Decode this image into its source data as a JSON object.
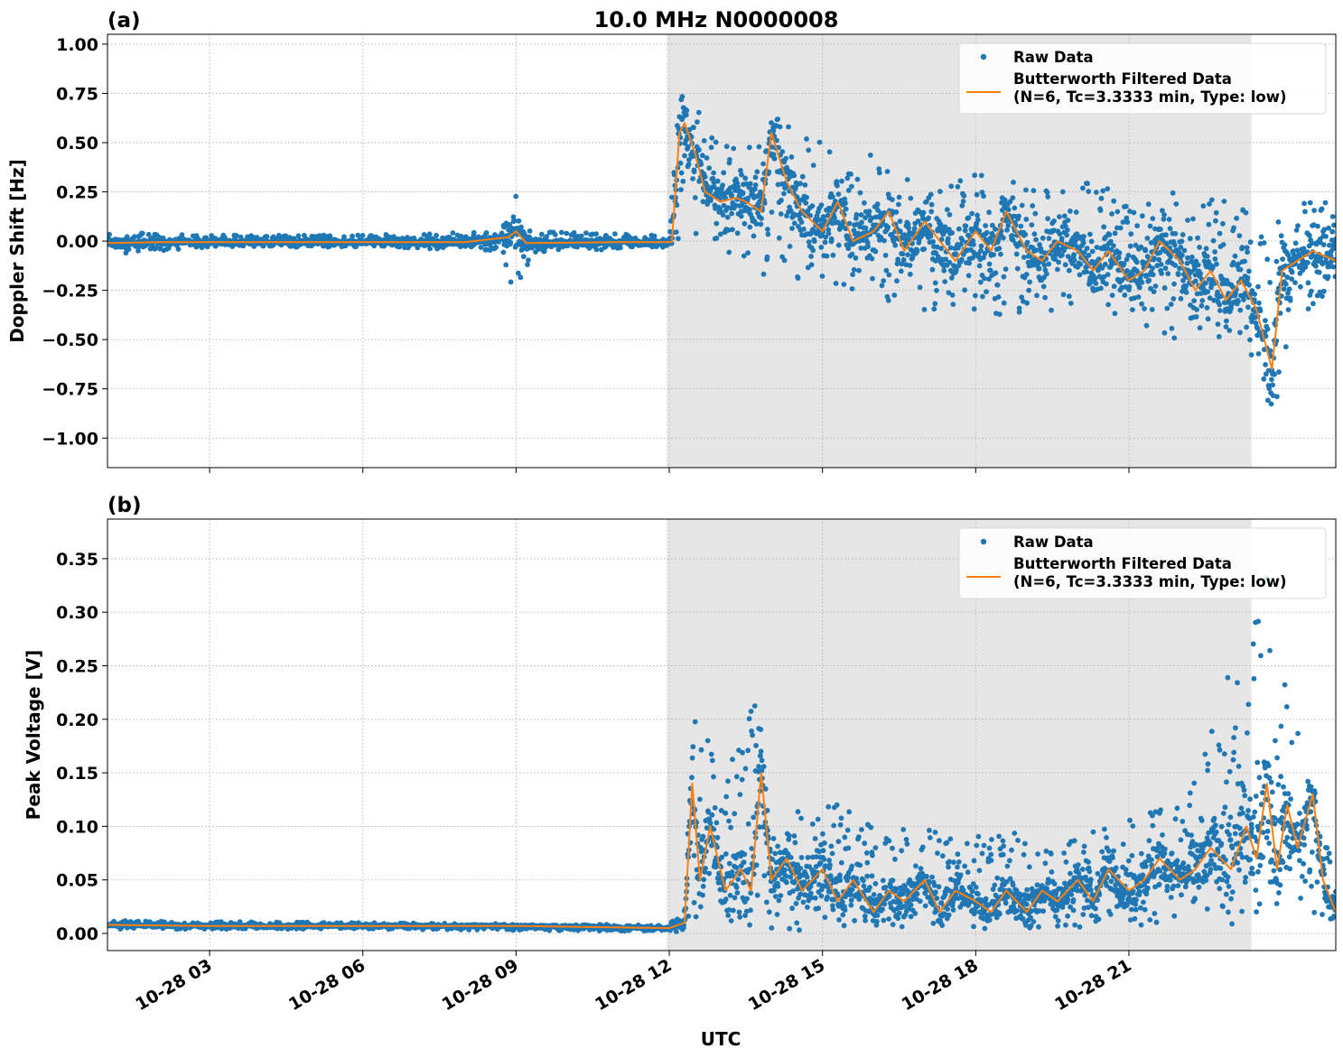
{
  "figure_title": "10.0 MHz N0000008",
  "x_axis_label": "UTC",
  "legend": {
    "raw_label": "Raw Data",
    "filtered_label_line1": "Butterworth Filtered Data",
    "filtered_label_line2": "(N=6, Tc=3.3333 min, Type: low)"
  },
  "colors": {
    "raw": "#1f77b4",
    "filtered": "#ff7f0e",
    "shade": "#e6e6e6",
    "grid": "#b0b0b0"
  },
  "chart_data": [
    {
      "type": "scatter",
      "panel_label": "(a)",
      "title": "10.0 MHz N0000008",
      "xlabel": "",
      "ylabel": "Doppler Shift [Hz]",
      "x_unit": "UTC hours on 10-28",
      "xlim": [
        1.0,
        25.05
      ],
      "ylim": [
        -1.15,
        1.05
      ],
      "yticks": [
        1.0,
        0.75,
        0.5,
        0.25,
        0.0,
        -0.25,
        -0.5,
        -0.75,
        -1.0
      ],
      "ytick_labels": [
        "1.00",
        "0.75",
        "0.50",
        "0.25",
        "0.00",
        "−0.25",
        "−0.50",
        "−0.75",
        "−1.00"
      ],
      "xticks": [
        3,
        6,
        9,
        12,
        15,
        18,
        21
      ],
      "xtick_labels": [
        "10-28 03",
        "10-28 06",
        "10-28 09",
        "10-28 12",
        "10-28 15",
        "10-28 18",
        "10-28 21"
      ],
      "grid": true,
      "legend_position": "top-right",
      "shaded_interval_hours": [
        11.95,
        23.4
      ],
      "series": [
        {
          "name": "Raw Data",
          "kind": "points",
          "envelope": {
            "x": [
              1.0,
              3.0,
              6.0,
              8.7,
              9.0,
              9.3,
              12.0,
              12.2,
              12.5,
              13.0,
              13.5,
              14.0,
              15.0,
              16.0,
              17.0,
              18.0,
              19.0,
              20.0,
              21.0,
              22.0,
              23.0,
              23.4,
              23.8,
              24.3,
              25.05
            ],
            "upper": [
              0.05,
              0.03,
              0.03,
              0.05,
              0.3,
              0.05,
              0.03,
              0.75,
              0.7,
              0.5,
              0.45,
              0.65,
              0.5,
              0.45,
              0.4,
              0.35,
              0.35,
              0.3,
              0.3,
              0.25,
              0.2,
              0.15,
              0.1,
              0.2,
              0.25
            ],
            "lower": [
              -0.07,
              -0.03,
              -0.03,
              -0.05,
              -0.3,
              -0.06,
              -0.03,
              0.0,
              0.0,
              -0.1,
              -0.1,
              -0.2,
              -0.2,
              -0.3,
              -0.35,
              -0.35,
              -0.4,
              -0.35,
              -0.45,
              -0.5,
              -0.5,
              -0.6,
              -0.9,
              -0.4,
              -0.3
            ]
          }
        },
        {
          "name": "Butterworth Filtered Data (N=6, Tc=3.3333 min, Type: low)",
          "kind": "line",
          "x": [
            1.0,
            2.0,
            4.0,
            6.0,
            8.0,
            8.85,
            9.0,
            9.2,
            11.0,
            12.05,
            12.2,
            12.3,
            12.5,
            12.7,
            13.0,
            13.3,
            13.5,
            13.8,
            14.0,
            14.3,
            14.6,
            15.0,
            15.3,
            15.6,
            16.0,
            16.3,
            16.6,
            17.0,
            17.3,
            17.6,
            18.0,
            18.3,
            18.6,
            19.0,
            19.3,
            19.6,
            20.0,
            20.3,
            20.6,
            21.0,
            21.3,
            21.6,
            22.0,
            22.3,
            22.6,
            22.9,
            23.2,
            23.5,
            23.7,
            23.8,
            24.0,
            24.3,
            24.6,
            25.05
          ],
          "y": [
            -0.01,
            -0.005,
            -0.005,
            -0.005,
            -0.005,
            0.02,
            0.05,
            -0.01,
            -0.005,
            -0.005,
            0.55,
            0.6,
            0.45,
            0.25,
            0.2,
            0.22,
            0.2,
            0.15,
            0.55,
            0.3,
            0.15,
            0.05,
            0.2,
            0.0,
            0.05,
            0.15,
            -0.05,
            0.1,
            0.0,
            -0.1,
            0.05,
            -0.05,
            0.15,
            -0.05,
            -0.1,
            0.0,
            -0.05,
            -0.15,
            -0.05,
            -0.2,
            -0.15,
            0.0,
            -0.1,
            -0.25,
            -0.15,
            -0.3,
            -0.2,
            -0.35,
            -0.55,
            -0.65,
            -0.15,
            -0.1,
            -0.05,
            -0.1
          ]
        }
      ]
    },
    {
      "type": "scatter",
      "panel_label": "(b)",
      "title": "",
      "xlabel": "UTC",
      "ylabel": "Peak Voltage [V]",
      "x_unit": "UTC hours on 10-28",
      "xlim": [
        1.0,
        25.05
      ],
      "ylim": [
        -0.016,
        0.387
      ],
      "yticks": [
        0.35,
        0.3,
        0.25,
        0.2,
        0.15,
        0.1,
        0.05,
        0.0
      ],
      "ytick_labels": [
        "0.35",
        "0.30",
        "0.25",
        "0.20",
        "0.15",
        "0.10",
        "0.05",
        "0.00"
      ],
      "xticks": [
        3,
        6,
        9,
        12,
        15,
        18,
        21
      ],
      "xtick_labels": [
        "10-28 03",
        "10-28 06",
        "10-28 09",
        "10-28 12",
        "10-28 15",
        "10-28 18",
        "10-28 21"
      ],
      "grid": true,
      "legend_position": "top-right",
      "shaded_interval_hours": [
        11.95,
        23.4
      ],
      "series": [
        {
          "name": "Raw Data",
          "kind": "points",
          "envelope": {
            "x": [
              1.0,
              6.0,
              12.0,
              12.3,
              12.5,
              13.0,
              13.7,
              14.0,
              15.0,
              16.0,
              17.0,
              18.0,
              19.0,
              20.0,
              21.0,
              22.0,
              22.5,
              23.0,
              23.4,
              23.7,
              24.0,
              24.5,
              25.05
            ],
            "upper": [
              0.012,
              0.01,
              0.008,
              0.03,
              0.26,
              0.12,
              0.27,
              0.1,
              0.13,
              0.1,
              0.1,
              0.09,
              0.1,
              0.09,
              0.11,
              0.12,
              0.17,
              0.25,
              0.28,
              0.34,
              0.25,
              0.15,
              0.07
            ],
            "lower": [
              0.004,
              0.004,
              0.002,
              0.0,
              0.0,
              0.0,
              0.0,
              0.0,
              0.005,
              0.005,
              0.005,
              0.005,
              0.005,
              0.005,
              0.005,
              0.01,
              0.01,
              0.02,
              0.02,
              0.04,
              0.05,
              0.02,
              0.01
            ]
          }
        },
        {
          "name": "Butterworth Filtered Data (N=6, Tc=3.3333 min, Type: low)",
          "kind": "line",
          "x": [
            1.0,
            3.0,
            6.0,
            9.0,
            12.0,
            12.3,
            12.45,
            12.6,
            12.8,
            13.1,
            13.4,
            13.6,
            13.8,
            14.0,
            14.3,
            14.6,
            15.0,
            15.3,
            15.6,
            16.0,
            16.3,
            16.6,
            17.0,
            17.3,
            17.6,
            18.0,
            18.3,
            18.6,
            19.0,
            19.3,
            19.6,
            20.0,
            20.3,
            20.6,
            21.0,
            21.3,
            21.6,
            22.0,
            22.3,
            22.6,
            23.0,
            23.3,
            23.5,
            23.7,
            23.9,
            24.1,
            24.3,
            24.6,
            24.8,
            25.05
          ],
          "y": [
            0.008,
            0.007,
            0.007,
            0.007,
            0.005,
            0.01,
            0.14,
            0.05,
            0.1,
            0.04,
            0.06,
            0.04,
            0.15,
            0.05,
            0.07,
            0.04,
            0.06,
            0.03,
            0.05,
            0.02,
            0.04,
            0.03,
            0.05,
            0.02,
            0.04,
            0.03,
            0.02,
            0.04,
            0.02,
            0.04,
            0.03,
            0.05,
            0.03,
            0.06,
            0.04,
            0.05,
            0.07,
            0.05,
            0.06,
            0.08,
            0.06,
            0.1,
            0.07,
            0.14,
            0.06,
            0.12,
            0.08,
            0.13,
            0.05,
            0.02
          ]
        }
      ]
    }
  ]
}
